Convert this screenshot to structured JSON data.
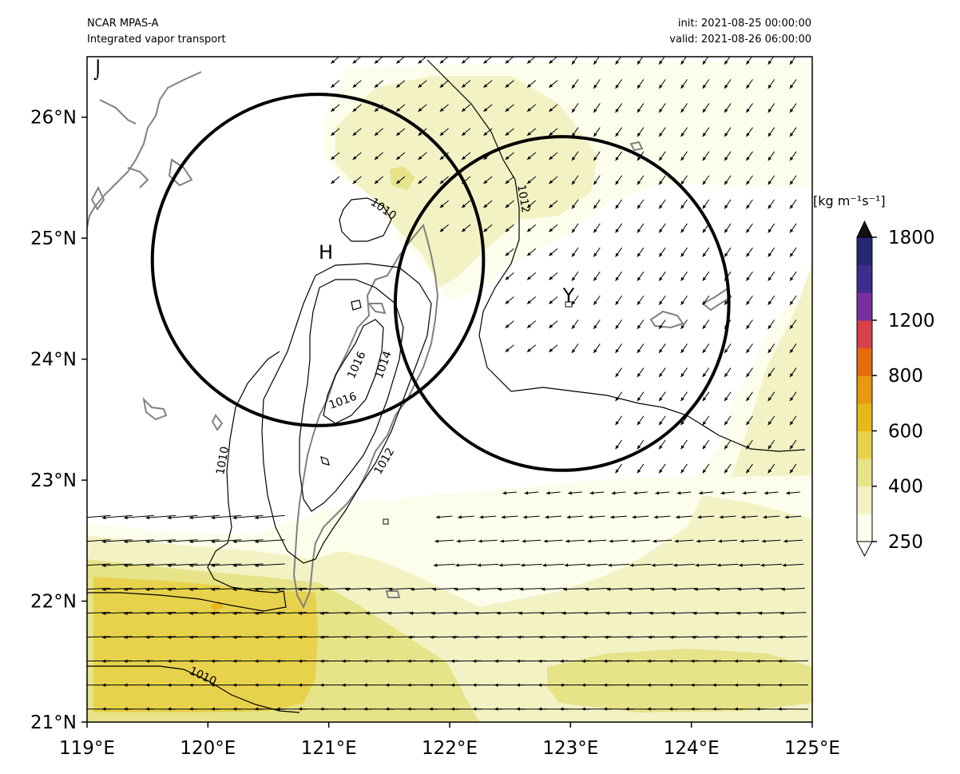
{
  "header": {
    "model": "NCAR MPAS-A",
    "field": "Integrated vapor transport",
    "init": "init: 2021-08-25 00:00:00",
    "valid": "valid: 2021-08-26 06:00:00"
  },
  "axes": {
    "lon_range": [
      119,
      125
    ],
    "lat_range": [
      21,
      26.5
    ],
    "x_ticks": [
      "119°E",
      "120°E",
      "121°E",
      "122°E",
      "123°E",
      "124°E",
      "125°E"
    ],
    "y_ticks": [
      "21°N",
      "22°N",
      "23°N",
      "24°N",
      "25°N",
      "26°N"
    ]
  },
  "colorbar": {
    "units": "[kg m⁻¹s⁻¹]",
    "tick_labels": [
      "250",
      "400",
      "600",
      "800",
      "1200",
      "1800"
    ],
    "levels": [
      250,
      300,
      400,
      500,
      600,
      700,
      800,
      1000,
      1200,
      1400,
      1600,
      1800
    ],
    "colors": [
      "#fdfdec",
      "#f2f2c5",
      "#e6e389",
      "#e8d24c",
      "#e5b919",
      "#e99812",
      "#e46b0e",
      "#d8404a",
      "#7a2f9e",
      "#3f2c8e",
      "#232970"
    ],
    "extend": "both"
  },
  "pressure_contours": {
    "labels": [
      "1010",
      "1010",
      "1010",
      "1012",
      "1012",
      "1014",
      "1016",
      "1016"
    ]
  },
  "markers": {
    "high": "H",
    "typhoon": "Y",
    "corner": "⌡"
  },
  "circles": [
    {
      "center_lon": 120.91,
      "center_lat": 24.82,
      "radius_deg": 1.37
    },
    {
      "center_lon": 122.93,
      "center_lat": 24.46,
      "radius_deg": 1.38
    }
  ],
  "colors": {
    "contour": "#000000",
    "coastline": "#808080",
    "arrow": "#000000"
  }
}
